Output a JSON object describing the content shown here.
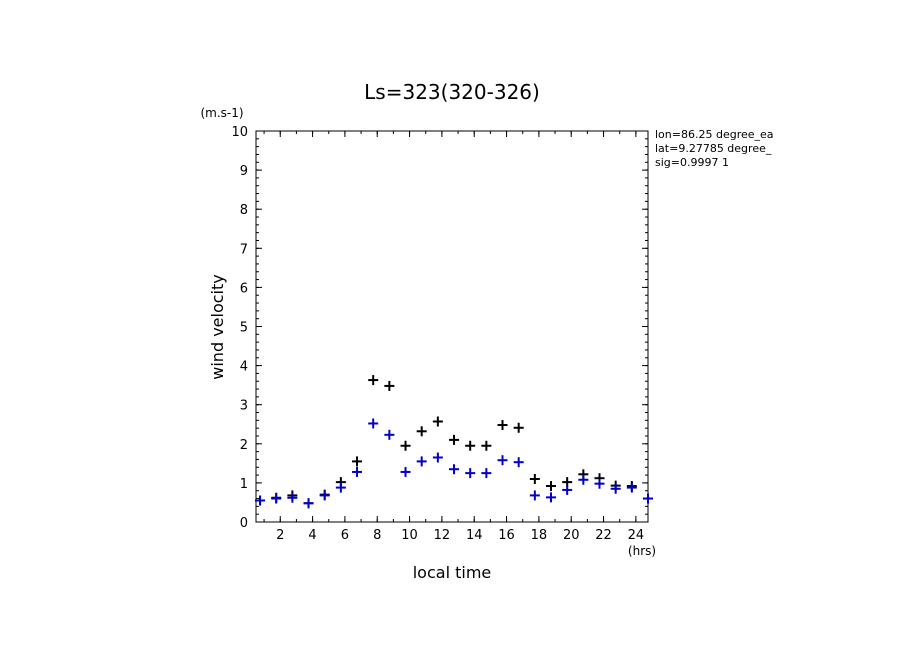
{
  "chart_data": {
    "type": "scatter",
    "title": "Ls=323(320-326)",
    "xlabel": "local time",
    "xunit": "(hrs)",
    "ylabel": "wind velocity",
    "yunit": "(m.s-1)",
    "xlim": [
      0.5,
      24.75
    ],
    "ylim": [
      0,
      10
    ],
    "xticks": [
      2,
      4,
      6,
      8,
      10,
      12,
      14,
      16,
      18,
      20,
      22,
      24
    ],
    "yticks": [
      0,
      1,
      2,
      3,
      4,
      5,
      6,
      7,
      8,
      9,
      10
    ],
    "annotations": [
      "lon=86.25 degree_ea",
      "lat=9.27785 degree_",
      "sig=0.9997 1"
    ],
    "marker": "+",
    "grid": false,
    "series": [
      {
        "color": "#000000",
        "x": [
          0.75,
          1.75,
          2.75,
          3.75,
          4.75,
          5.75,
          6.75,
          7.75,
          8.75,
          9.75,
          10.75,
          11.75,
          12.75,
          13.75,
          14.75,
          15.75,
          16.75,
          17.75,
          18.75,
          19.75,
          20.75,
          21.75,
          22.75,
          23.75,
          24.75
        ],
        "y": [
          0.55,
          0.62,
          0.68,
          0.48,
          0.7,
          1.02,
          1.55,
          3.63,
          3.48,
          1.95,
          2.32,
          2.57,
          2.1,
          1.95,
          1.95,
          2.48,
          2.41,
          1.1,
          0.92,
          1.02,
          1.22,
          1.12,
          0.93,
          0.92,
          0.6
        ]
      },
      {
        "color": "#0000cc",
        "x": [
          0.75,
          1.75,
          2.75,
          3.75,
          4.75,
          5.75,
          6.75,
          7.75,
          8.75,
          9.75,
          10.75,
          11.75,
          12.75,
          13.75,
          14.75,
          15.75,
          16.75,
          17.75,
          18.75,
          19.75,
          20.75,
          21.75,
          22.75,
          23.75,
          24.75
        ],
        "y": [
          0.55,
          0.6,
          0.62,
          0.48,
          0.68,
          0.88,
          1.28,
          2.52,
          2.23,
          1.28,
          1.55,
          1.65,
          1.35,
          1.25,
          1.25,
          1.58,
          1.53,
          0.68,
          0.63,
          0.82,
          1.08,
          0.98,
          0.85,
          0.88,
          0.6
        ]
      }
    ]
  }
}
